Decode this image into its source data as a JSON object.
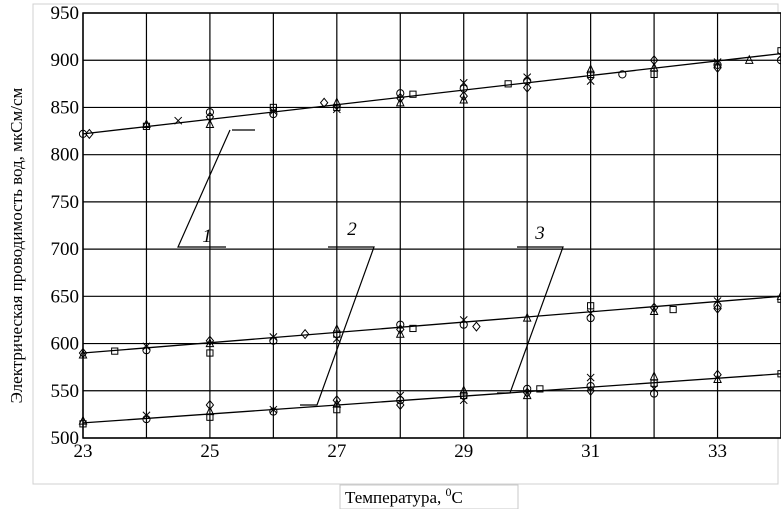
{
  "chart_data": {
    "type": "scatter",
    "title": "",
    "xlabel": "Температура, ",
    "xlabel_unit": "С",
    "xlabel_superscript": "0",
    "ylabel": "Электрическая проводимость вод, мкСм/см",
    "xlim": [
      23,
      34
    ],
    "ylim": [
      500,
      950
    ],
    "x_ticks": [
      23,
      25,
      27,
      29,
      31,
      33
    ],
    "x_tick_labels": [
      "23",
      "25",
      "27",
      "29",
      "31",
      "33"
    ],
    "y_ticks": [
      500,
      550,
      600,
      650,
      700,
      750,
      800,
      850,
      900,
      950
    ],
    "y_tick_labels": [
      "500",
      "550",
      "600",
      "650",
      "700",
      "750",
      "800",
      "850",
      "900",
      "950"
    ],
    "x_gridlines": [
      23,
      24,
      25,
      26,
      27,
      28,
      29,
      30,
      31,
      32,
      33,
      34
    ],
    "grid": true,
    "series": [
      {
        "label": "1",
        "fit": [
          [
            23,
            822
          ],
          [
            34,
            907
          ]
        ],
        "points": [
          [
            23,
            822
          ],
          [
            23.1,
            822
          ],
          [
            24,
            832
          ],
          [
            24,
            830
          ],
          [
            24.5,
            836
          ],
          [
            25,
            845
          ],
          [
            25,
            840
          ],
          [
            25,
            832
          ],
          [
            26,
            850
          ],
          [
            26,
            846
          ],
          [
            26,
            843
          ],
          [
            26.8,
            855
          ],
          [
            27,
            855
          ],
          [
            27,
            850
          ],
          [
            27,
            848
          ],
          [
            28,
            865
          ],
          [
            28,
            860
          ],
          [
            28,
            855
          ],
          [
            28.2,
            864
          ],
          [
            29,
            876
          ],
          [
            29,
            870
          ],
          [
            29,
            862
          ],
          [
            29,
            858
          ],
          [
            29.7,
            875
          ],
          [
            30,
            882
          ],
          [
            30,
            878
          ],
          [
            30,
            871
          ],
          [
            31,
            890
          ],
          [
            31,
            885
          ],
          [
            31,
            878
          ],
          [
            31.5,
            885
          ],
          [
            32,
            900
          ],
          [
            32,
            892
          ],
          [
            32,
            885
          ],
          [
            33,
            898
          ],
          [
            33,
            895
          ],
          [
            33,
            892
          ],
          [
            33.5,
            900
          ],
          [
            34,
            910
          ],
          [
            34,
            905
          ],
          [
            34,
            900
          ]
        ]
      },
      {
        "label": "2",
        "fit": [
          [
            23,
            590
          ],
          [
            34,
            650
          ]
        ],
        "points": [
          [
            23,
            590
          ],
          [
            23,
            588
          ],
          [
            23.5,
            592
          ],
          [
            24,
            597
          ],
          [
            24,
            593
          ],
          [
            25,
            603
          ],
          [
            25,
            600
          ],
          [
            25,
            590
          ],
          [
            26,
            607
          ],
          [
            26,
            603
          ],
          [
            26.5,
            610
          ],
          [
            27,
            615
          ],
          [
            27,
            610
          ],
          [
            27,
            605
          ],
          [
            28,
            620
          ],
          [
            28,
            615
          ],
          [
            28,
            610
          ],
          [
            28.2,
            616
          ],
          [
            29,
            625
          ],
          [
            29,
            620
          ],
          [
            29.2,
            618
          ],
          [
            30,
            627
          ],
          [
            31,
            640
          ],
          [
            31,
            632
          ],
          [
            31,
            627
          ],
          [
            32,
            638
          ],
          [
            32,
            634
          ],
          [
            32.3,
            636
          ],
          [
            33,
            645
          ],
          [
            33,
            640
          ],
          [
            33,
            637
          ],
          [
            34,
            650
          ],
          [
            34,
            647
          ]
        ]
      },
      {
        "label": "3",
        "fit": [
          [
            23,
            516
          ],
          [
            34,
            568
          ]
        ],
        "points": [
          [
            23,
            518
          ],
          [
            23,
            515
          ],
          [
            24,
            524
          ],
          [
            24,
            520
          ],
          [
            25,
            535
          ],
          [
            25,
            528
          ],
          [
            25,
            522
          ],
          [
            26,
            530
          ],
          [
            26,
            528
          ],
          [
            27,
            540
          ],
          [
            27,
            536
          ],
          [
            27,
            530
          ],
          [
            28,
            545
          ],
          [
            28,
            540
          ],
          [
            28,
            535
          ],
          [
            29,
            550
          ],
          [
            29,
            545
          ],
          [
            29,
            540
          ],
          [
            30,
            552
          ],
          [
            30,
            548
          ],
          [
            30,
            545
          ],
          [
            30.2,
            552
          ],
          [
            31,
            564
          ],
          [
            31,
            555
          ],
          [
            31,
            550
          ],
          [
            32,
            565
          ],
          [
            32,
            558
          ],
          [
            32,
            552
          ],
          [
            32,
            547
          ],
          [
            33,
            567
          ],
          [
            33,
            562
          ],
          [
            34,
            568
          ]
        ]
      }
    ],
    "curve_labels": [
      "1",
      "2",
      "3"
    ]
  }
}
